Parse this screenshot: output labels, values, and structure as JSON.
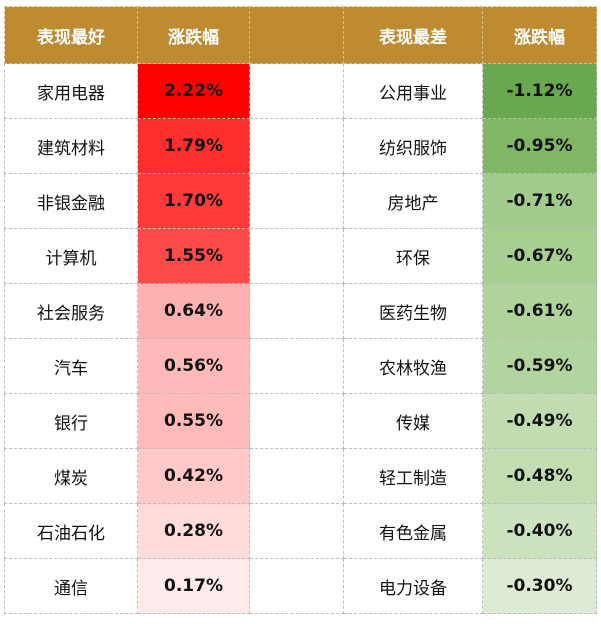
{
  "header": {
    "best_label": "表现最好",
    "best_change_label": "涨跌幅",
    "worst_label": "表现最差",
    "worst_change_label": "涨跌幅"
  },
  "colors": {
    "header_bg": "#bf8b30",
    "up_strong": "#ff0000",
    "up_light": "#ffebeb",
    "down_strong": "#6aa84f",
    "down_light": "#ddebd4"
  },
  "chart_data": {
    "type": "table",
    "columns": [
      "表现最好",
      "涨跌幅",
      "表现最差",
      "涨跌幅"
    ],
    "best": [
      {
        "name": "家用电器",
        "change": "2.22%",
        "value": 2.22,
        "color": "#ff0000"
      },
      {
        "name": "建筑材料",
        "change": "1.79%",
        "value": 1.79,
        "color": "#ff2e2e"
      },
      {
        "name": "非银金融",
        "change": "1.70%",
        "value": 1.7,
        "color": "#ff3a3a"
      },
      {
        "name": "计算机",
        "change": "1.55%",
        "value": 1.55,
        "color": "#ff4a4a"
      },
      {
        "name": "社会服务",
        "change": "0.64%",
        "value": 0.64,
        "color": "#ffb0b0"
      },
      {
        "name": "汽车",
        "change": "0.56%",
        "value": 0.56,
        "color": "#ffb9b9"
      },
      {
        "name": "银行",
        "change": "0.55%",
        "value": 0.55,
        "color": "#ffbaba"
      },
      {
        "name": "煤炭",
        "change": "0.42%",
        "value": 0.42,
        "color": "#ffc9c9"
      },
      {
        "name": "石油石化",
        "change": "0.28%",
        "value": 0.28,
        "color": "#ffdcdc"
      },
      {
        "name": "通信",
        "change": "0.17%",
        "value": 0.17,
        "color": "#ffebeb"
      }
    ],
    "worst": [
      {
        "name": "公用事业",
        "change": "-1.12%",
        "value": -1.12,
        "color": "#6aa84f"
      },
      {
        "name": "纺织服饰",
        "change": "-0.95%",
        "value": -0.95,
        "color": "#80b664"
      },
      {
        "name": "房地产",
        "change": "-0.71%",
        "value": -0.71,
        "color": "#a2cb8c"
      },
      {
        "name": "环保",
        "change": "-0.67%",
        "value": -0.67,
        "color": "#a8cf92"
      },
      {
        "name": "医药生物",
        "change": "-0.61%",
        "value": -0.61,
        "color": "#afd39a"
      },
      {
        "name": "农林牧渔",
        "change": "-0.59%",
        "value": -0.59,
        "color": "#b2d49e"
      },
      {
        "name": "传媒",
        "change": "-0.49%",
        "value": -0.49,
        "color": "#c0dcb0"
      },
      {
        "name": "轻工制造",
        "change": "-0.48%",
        "value": -0.48,
        "color": "#c2ddb2"
      },
      {
        "name": "有色金属",
        "change": "-0.40%",
        "value": -0.4,
        "color": "#cde3c0"
      },
      {
        "name": "电力设备",
        "change": "-0.30%",
        "value": -0.3,
        "color": "#ddebd4"
      }
    ]
  }
}
